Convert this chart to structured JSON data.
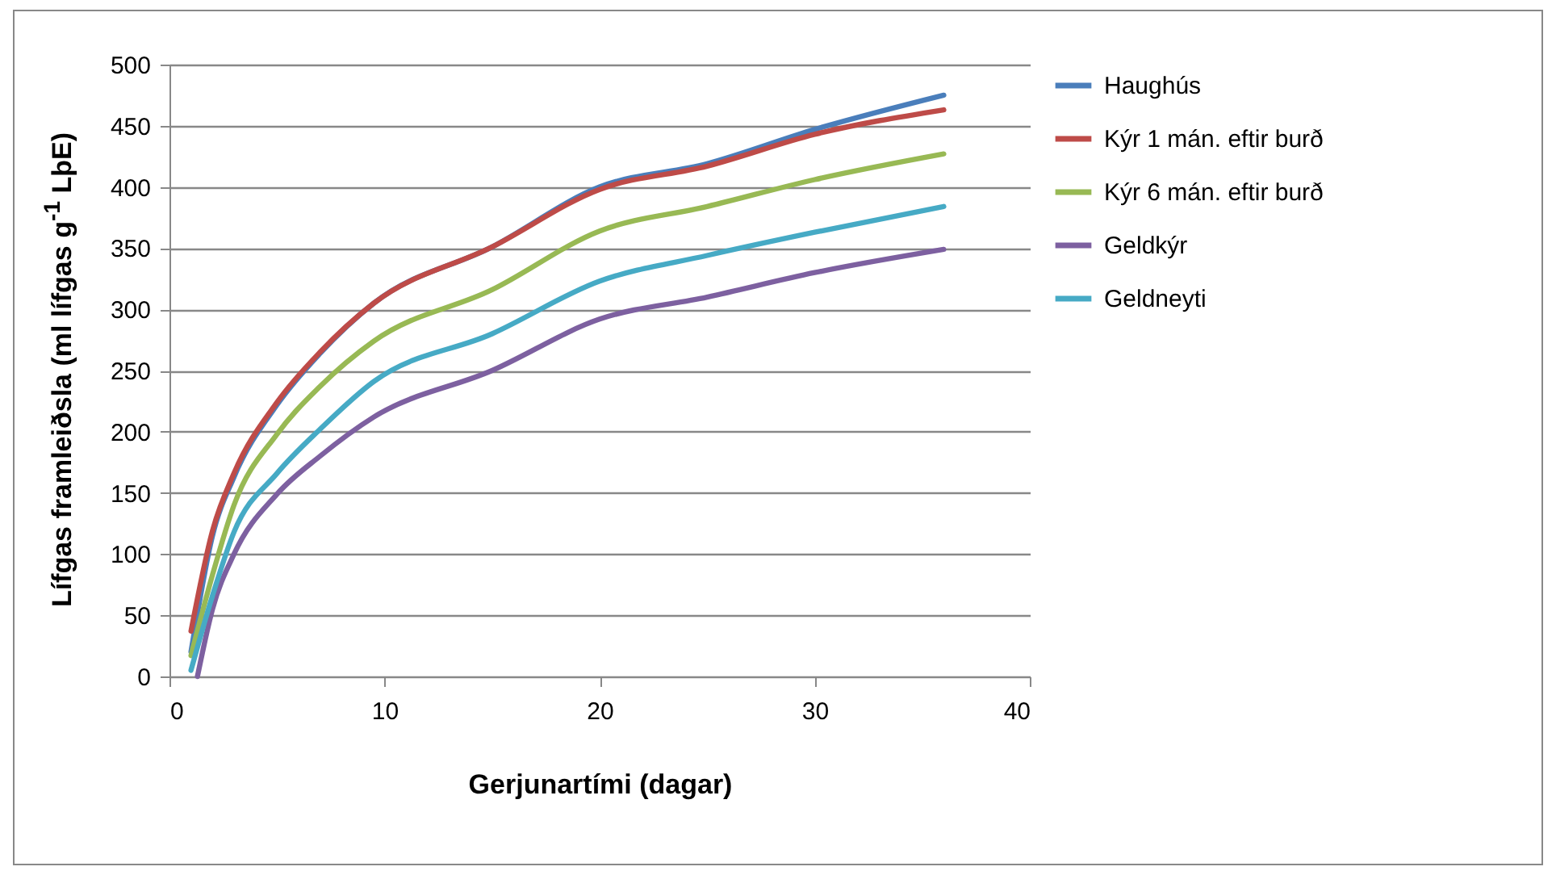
{
  "chart_data": {
    "type": "line",
    "xlabel": "Gerjunartími (dagar)",
    "ylabel": "Lífgas framleiðsla (ml lífgas g$^{-1}$ LþE)",
    "xlim": [
      0,
      40
    ],
    "xticks": [
      0,
      10,
      20,
      30,
      40
    ],
    "ylim": [
      0,
      500
    ],
    "yticks": [
      0,
      50,
      100,
      150,
      200,
      250,
      300,
      350,
      400,
      450,
      500
    ],
    "grid": "y",
    "legend": "right",
    "marker": "none",
    "line_style": "solid",
    "series": [
      {
        "name": "Haughús",
        "color": "#4a7ebb",
        "x": [
          1,
          2,
          3,
          5,
          7,
          9.5,
          15,
          20,
          25,
          30,
          36
        ],
        "values": [
          20,
          115,
          163,
          222,
          264,
          305,
          351,
          400,
          419,
          447,
          475
        ]
      },
      {
        "name": "Kýr 1 mán. eftir burð",
        "color": "#be4b48",
        "x": [
          1,
          2,
          3,
          5,
          7,
          9.5,
          15,
          20,
          25,
          30,
          36
        ],
        "values": [
          37,
          119,
          166,
          224,
          265,
          305,
          351,
          398,
          417,
          443,
          463
        ]
      },
      {
        "name": "Kýr 6 mán. eftir burð",
        "color": "#98b954",
        "x": [
          1,
          2,
          3,
          5,
          7,
          9.5,
          15,
          20,
          25,
          30,
          36
        ],
        "values": [
          17,
          83,
          140,
          198,
          237,
          274,
          316,
          364,
          384,
          406,
          427
        ]
      },
      {
        "name": "Geldkýr",
        "color": "#7d60a0",
        "x": [
          1.3,
          2,
          3,
          5,
          7,
          9.5,
          15,
          20,
          25,
          30,
          36
        ],
        "values": [
          0,
          55,
          100,
          149,
          180,
          212,
          250,
          292,
          310,
          330,
          349
        ]
      },
      {
        "name": "Geldneyti",
        "color": "#46aac5",
        "x": [
          1,
          2,
          3,
          5,
          7,
          9.5,
          15,
          20,
          25,
          30,
          36
        ],
        "values": [
          5,
          66,
          118,
          166,
          202,
          241,
          280,
          323,
          344,
          363,
          384
        ]
      }
    ]
  }
}
